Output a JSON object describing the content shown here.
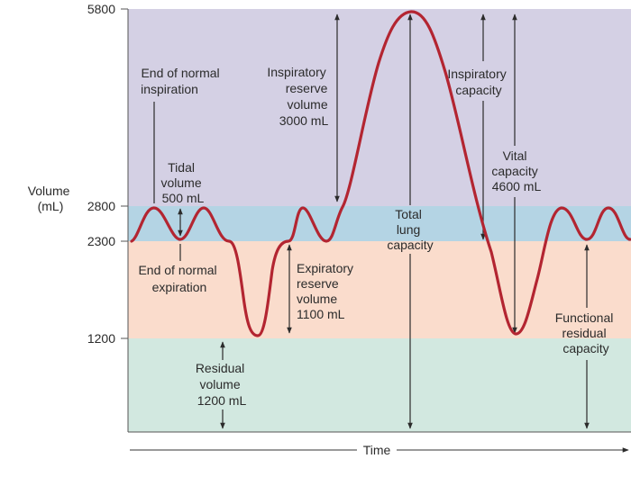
{
  "axis": {
    "y_label": [
      "Volume",
      "(mL)"
    ],
    "y_ticks": [
      "5800",
      "2800",
      "2300",
      "1200"
    ],
    "x_label": "Time"
  },
  "zones": {
    "colors": {
      "inspiratory_reserve": "#d4d0e4",
      "tidal": "#b4d4e4",
      "expiratory_reserve": "#fadccc",
      "residual": "#d2e8e0"
    }
  },
  "curve": {
    "color": "#b32531"
  },
  "labels": {
    "end_normal_inspiration": [
      "End of normal",
      "inspiration"
    ],
    "tidal_volume": [
      "Tidal",
      "volume",
      "500 mL"
    ],
    "end_normal_expiration": [
      "End of normal",
      "expiration"
    ],
    "inspiratory_reserve_volume": [
      "Inspiratory",
      "reserve",
      "volume",
      "3000 mL"
    ],
    "expiratory_reserve_volume": [
      "Expiratory",
      "reserve",
      "volume",
      "1100 mL"
    ],
    "residual_volume": [
      "Residual",
      "volume",
      "1200 mL"
    ],
    "total_lung_capacity": [
      "Total",
      "lung",
      "capacity"
    ],
    "inspiratory_capacity": [
      "Inspiratory",
      "capacity"
    ],
    "vital_capacity": [
      "Vital",
      "capacity",
      "4600 mL"
    ],
    "functional_residual_capacity": [
      "Functional",
      "residual",
      "capacity"
    ]
  }
}
